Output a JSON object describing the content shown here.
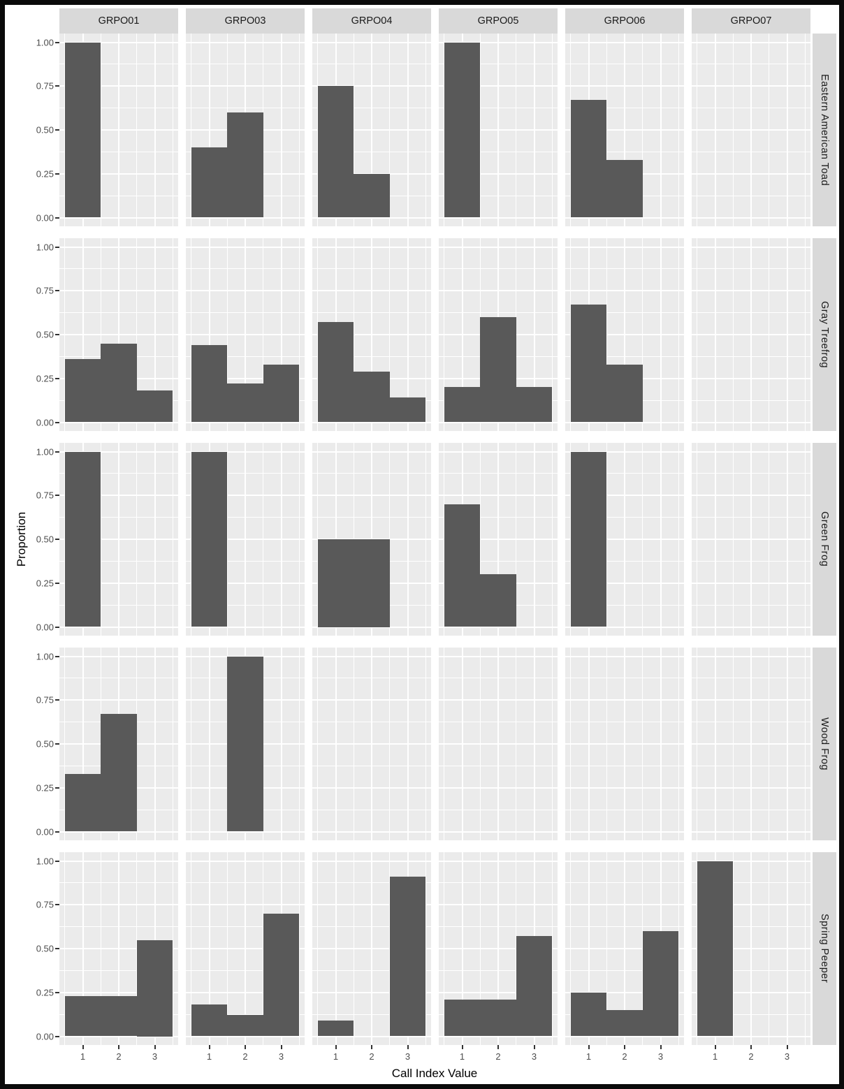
{
  "chart_data": {
    "type": "bar",
    "title": "",
    "xlabel": "Call Index Value",
    "ylabel": "Proportion",
    "x_categories": [
      "1",
      "2",
      "3"
    ],
    "y_tick_labels": [
      "1.00",
      "0.75",
      "0.50",
      "0.25",
      "0.00"
    ],
    "y_tick_values": [
      1.0,
      0.75,
      0.5,
      0.25,
      0.0
    ],
    "ylim": [
      0,
      1
    ],
    "grid": "white major+minor gridlines on grey panels",
    "legend": "none",
    "facet_columns": [
      "GRPO01",
      "GRPO03",
      "GRPO04",
      "GRPO05",
      "GRPO06",
      "GRPO07"
    ],
    "facet_rows": [
      "Eastern American Toad",
      "Gray Treefrog",
      "Green Frog",
      "Wood Frog",
      "Spring Peeper"
    ],
    "panel_values": [
      [
        [
          1.0,
          0,
          0
        ],
        [
          0.4,
          0.6,
          0
        ],
        [
          0.75,
          0.25,
          0
        ],
        [
          1.0,
          0,
          0
        ],
        [
          0.67,
          0.33,
          0
        ],
        [
          0,
          0,
          0
        ]
      ],
      [
        [
          0.36,
          0.45,
          0.18
        ],
        [
          0.44,
          0.22,
          0.33
        ],
        [
          0.57,
          0.29,
          0.14
        ],
        [
          0.2,
          0.6,
          0.2
        ],
        [
          0.67,
          0.33,
          0
        ],
        [
          0,
          0,
          0
        ]
      ],
      [
        [
          1.0,
          0,
          0
        ],
        [
          1.0,
          0,
          0
        ],
        [
          0.5,
          0.5,
          0
        ],
        [
          0.7,
          0.3,
          0
        ],
        [
          1.0,
          0,
          0
        ],
        [
          0,
          0,
          0
        ]
      ],
      [
        [
          0.33,
          0.67,
          0
        ],
        [
          0,
          1.0,
          0
        ],
        [
          0,
          0,
          0
        ],
        [
          0,
          0,
          0
        ],
        [
          0,
          0,
          0
        ],
        [
          0,
          0,
          0
        ]
      ],
      [
        [
          0.23,
          0.23,
          0.55
        ],
        [
          0.18,
          0.12,
          0.7
        ],
        [
          0.09,
          0,
          0.91
        ],
        [
          0.21,
          0.21,
          0.57
        ],
        [
          0.25,
          0.15,
          0.6
        ],
        [
          1.0,
          0,
          0
        ]
      ]
    ],
    "colors": {
      "bar": "#595959",
      "panel_bg": "#ebebeb",
      "strip_bg": "#d9d9d9",
      "gridline": "#ffffff",
      "tick_label": "#4d4d4d",
      "strip_text": "#1a1a1a",
      "axis_title": "#000000",
      "frame": "#0a0a0a",
      "background": "#ffffff"
    }
  }
}
